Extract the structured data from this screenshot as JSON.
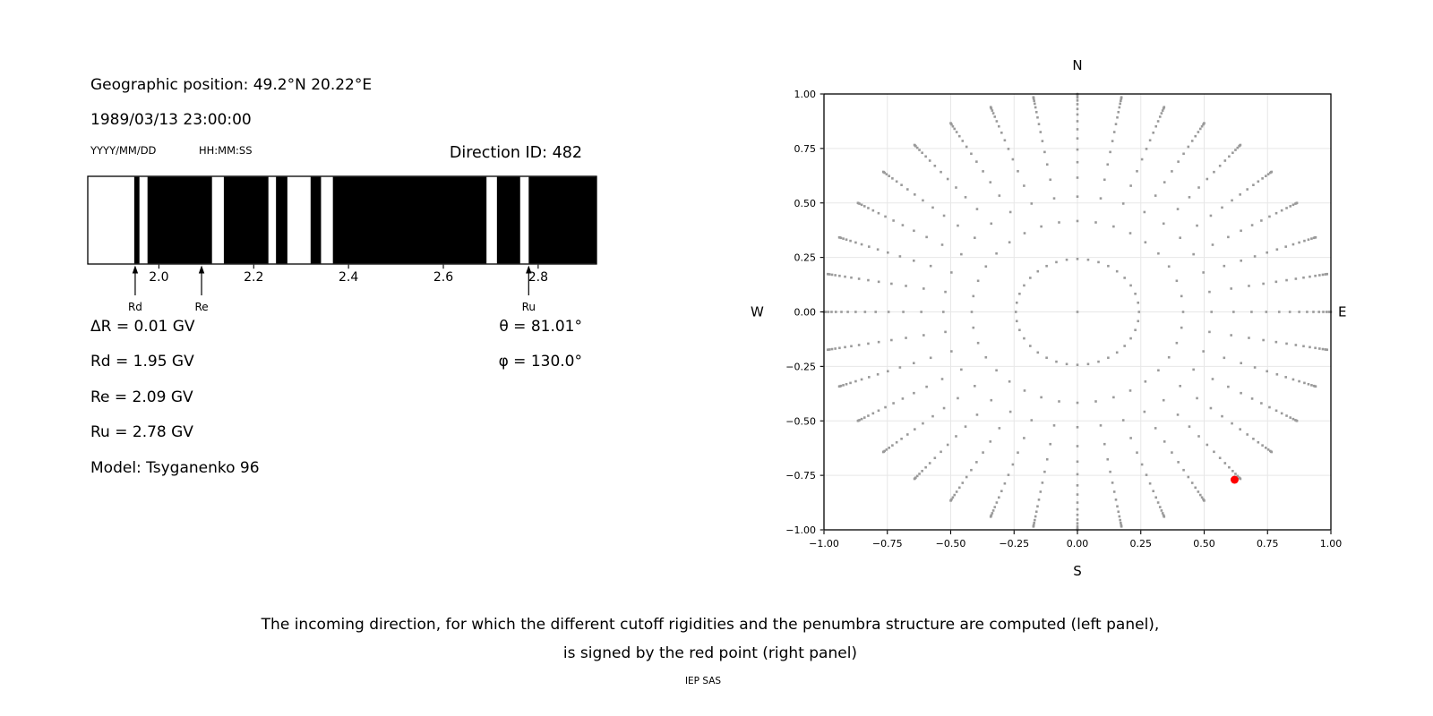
{
  "header": {
    "geo_position": "Geographic position: 49.2°N 20.22°E",
    "datetime": "1989/03/13 23:00:00",
    "date_format": "YYYY/MM/DD",
    "time_format": "HH:MM:SS",
    "direction_id": "Direction ID: 482"
  },
  "params": {
    "left": [
      "ΔR = 0.01 GV",
      "Rd = 1.95 GV",
      "Re = 2.09 GV",
      "Ru = 2.78 GV",
      "Model: Tsyganenko 96"
    ],
    "right": [
      "θ = 81.01°",
      "φ = 130.0°"
    ]
  },
  "caption": {
    "line1": "The incoming direction, for which the different cutoff rigidities and the penumbra structure are computed (left panel),",
    "line2": "is signed by the red point (right panel)"
  },
  "footer": "IEP SAS",
  "colors": {
    "bar": "#000000",
    "dot_gray": "#9a9a9a",
    "red_point": "#ff0000",
    "grid": "#e7e7e7",
    "axis": "#000000"
  },
  "chart_data": [
    {
      "type": "bar",
      "subtype": "penumbra-barcode",
      "description": "Penumbra structure: black = allowed rigidity bands (GV), white = forbidden",
      "xlim": [
        1.85,
        2.923
      ],
      "xticks": [
        2.0,
        2.2,
        2.4,
        2.6,
        2.8
      ],
      "xtick_labels": [
        "2.0",
        "2.2",
        "2.4",
        "2.6",
        "2.8"
      ],
      "black_regions_gv": [
        [
          1.948,
          1.959
        ],
        [
          1.976,
          2.112
        ],
        [
          2.137,
          2.231
        ],
        [
          2.247,
          2.271
        ],
        [
          2.32,
          2.342
        ],
        [
          2.367,
          2.691
        ],
        [
          2.713,
          2.762
        ],
        [
          2.78,
          2.923
        ]
      ],
      "annotations": [
        {
          "label": "Rd",
          "x": 1.95
        },
        {
          "label": "Re",
          "x": 2.09
        },
        {
          "label": "Ru",
          "x": 2.78
        }
      ]
    },
    {
      "type": "scatter",
      "subtype": "incoming-direction-sky-map",
      "xlim": [
        -1.0,
        1.0
      ],
      "ylim": [
        -1.0,
        1.0
      ],
      "ticks": [
        -1.0,
        -0.75,
        -0.5,
        -0.25,
        0.0,
        0.25,
        0.5,
        0.75,
        1.0
      ],
      "tick_labels": [
        "−1.00",
        "−0.75",
        "−0.50",
        "−0.25",
        "0.00",
        "0.25",
        "0.50",
        "0.75",
        "1.00"
      ],
      "grid": true,
      "compass": {
        "top": "N",
        "bottom": "S",
        "left": "W",
        "right": "E"
      },
      "spokes": {
        "azimuth_start_deg": 0,
        "azimuth_step_deg": 10,
        "azimuth_count": 36,
        "radii": [
          0.243,
          0.417,
          0.529,
          0.616,
          0.687,
          0.745,
          0.796,
          0.838,
          0.875,
          0.906,
          0.931,
          0.953,
          0.97,
          0.983,
          0.993,
          0.998,
          1.0
        ]
      },
      "center_dot": {
        "x": 0,
        "y": 0
      },
      "red_point": {
        "x": 0.62,
        "y": -0.77
      }
    }
  ]
}
